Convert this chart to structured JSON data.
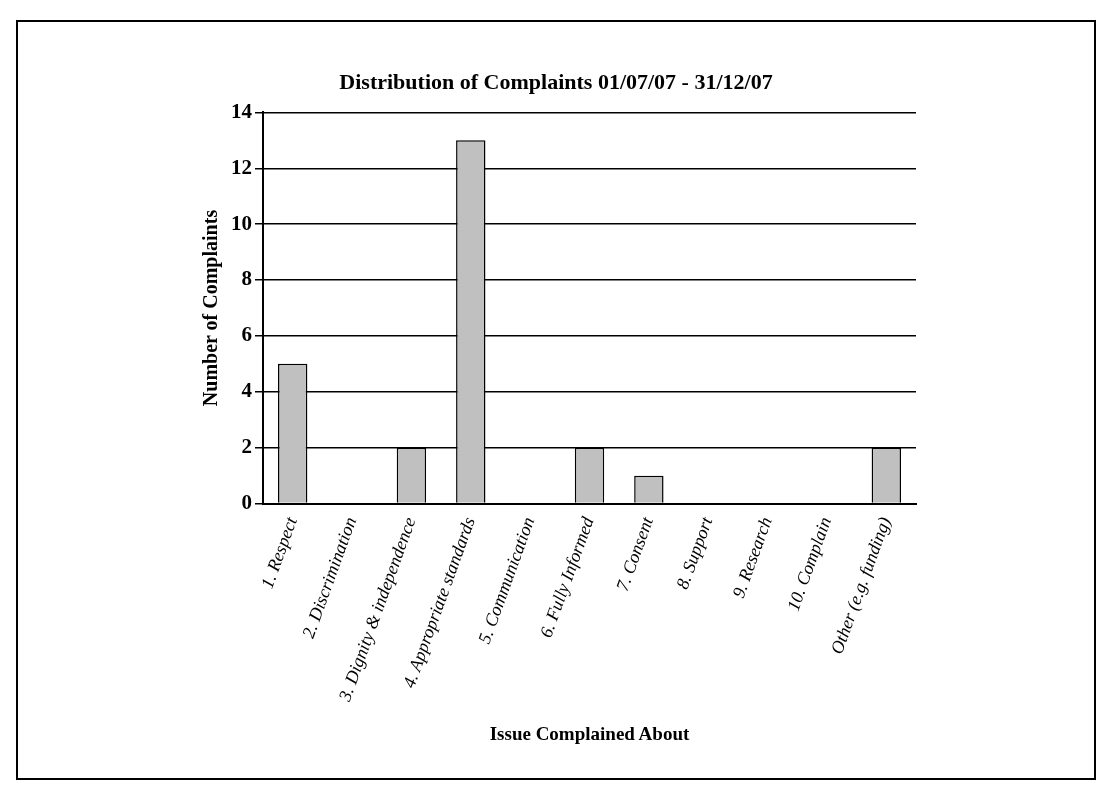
{
  "chart_data": {
    "type": "bar",
    "title": "Distribution of Complaints 01/07/07 - 31/12/07",
    "xlabel": "Issue Complained About",
    "ylabel": "Number of Complaints",
    "categories": [
      "1. Respect",
      "2. Discrimination",
      "3. Dignity & independence",
      "4. Appropriate standards",
      "5. Communication",
      "6. Fully Informed",
      "7. Consent",
      "8. Support",
      "9. Research",
      "10. Complain",
      "Other (e.g. funding)"
    ],
    "values": [
      5,
      0,
      2,
      13,
      0,
      2,
      1,
      0,
      0,
      0,
      2
    ],
    "color": "#c0c0c0",
    "ylim": [
      0,
      14
    ],
    "yticks": [
      0,
      2,
      4,
      6,
      8,
      10,
      12,
      14
    ],
    "grid": "y",
    "legend": false
  }
}
